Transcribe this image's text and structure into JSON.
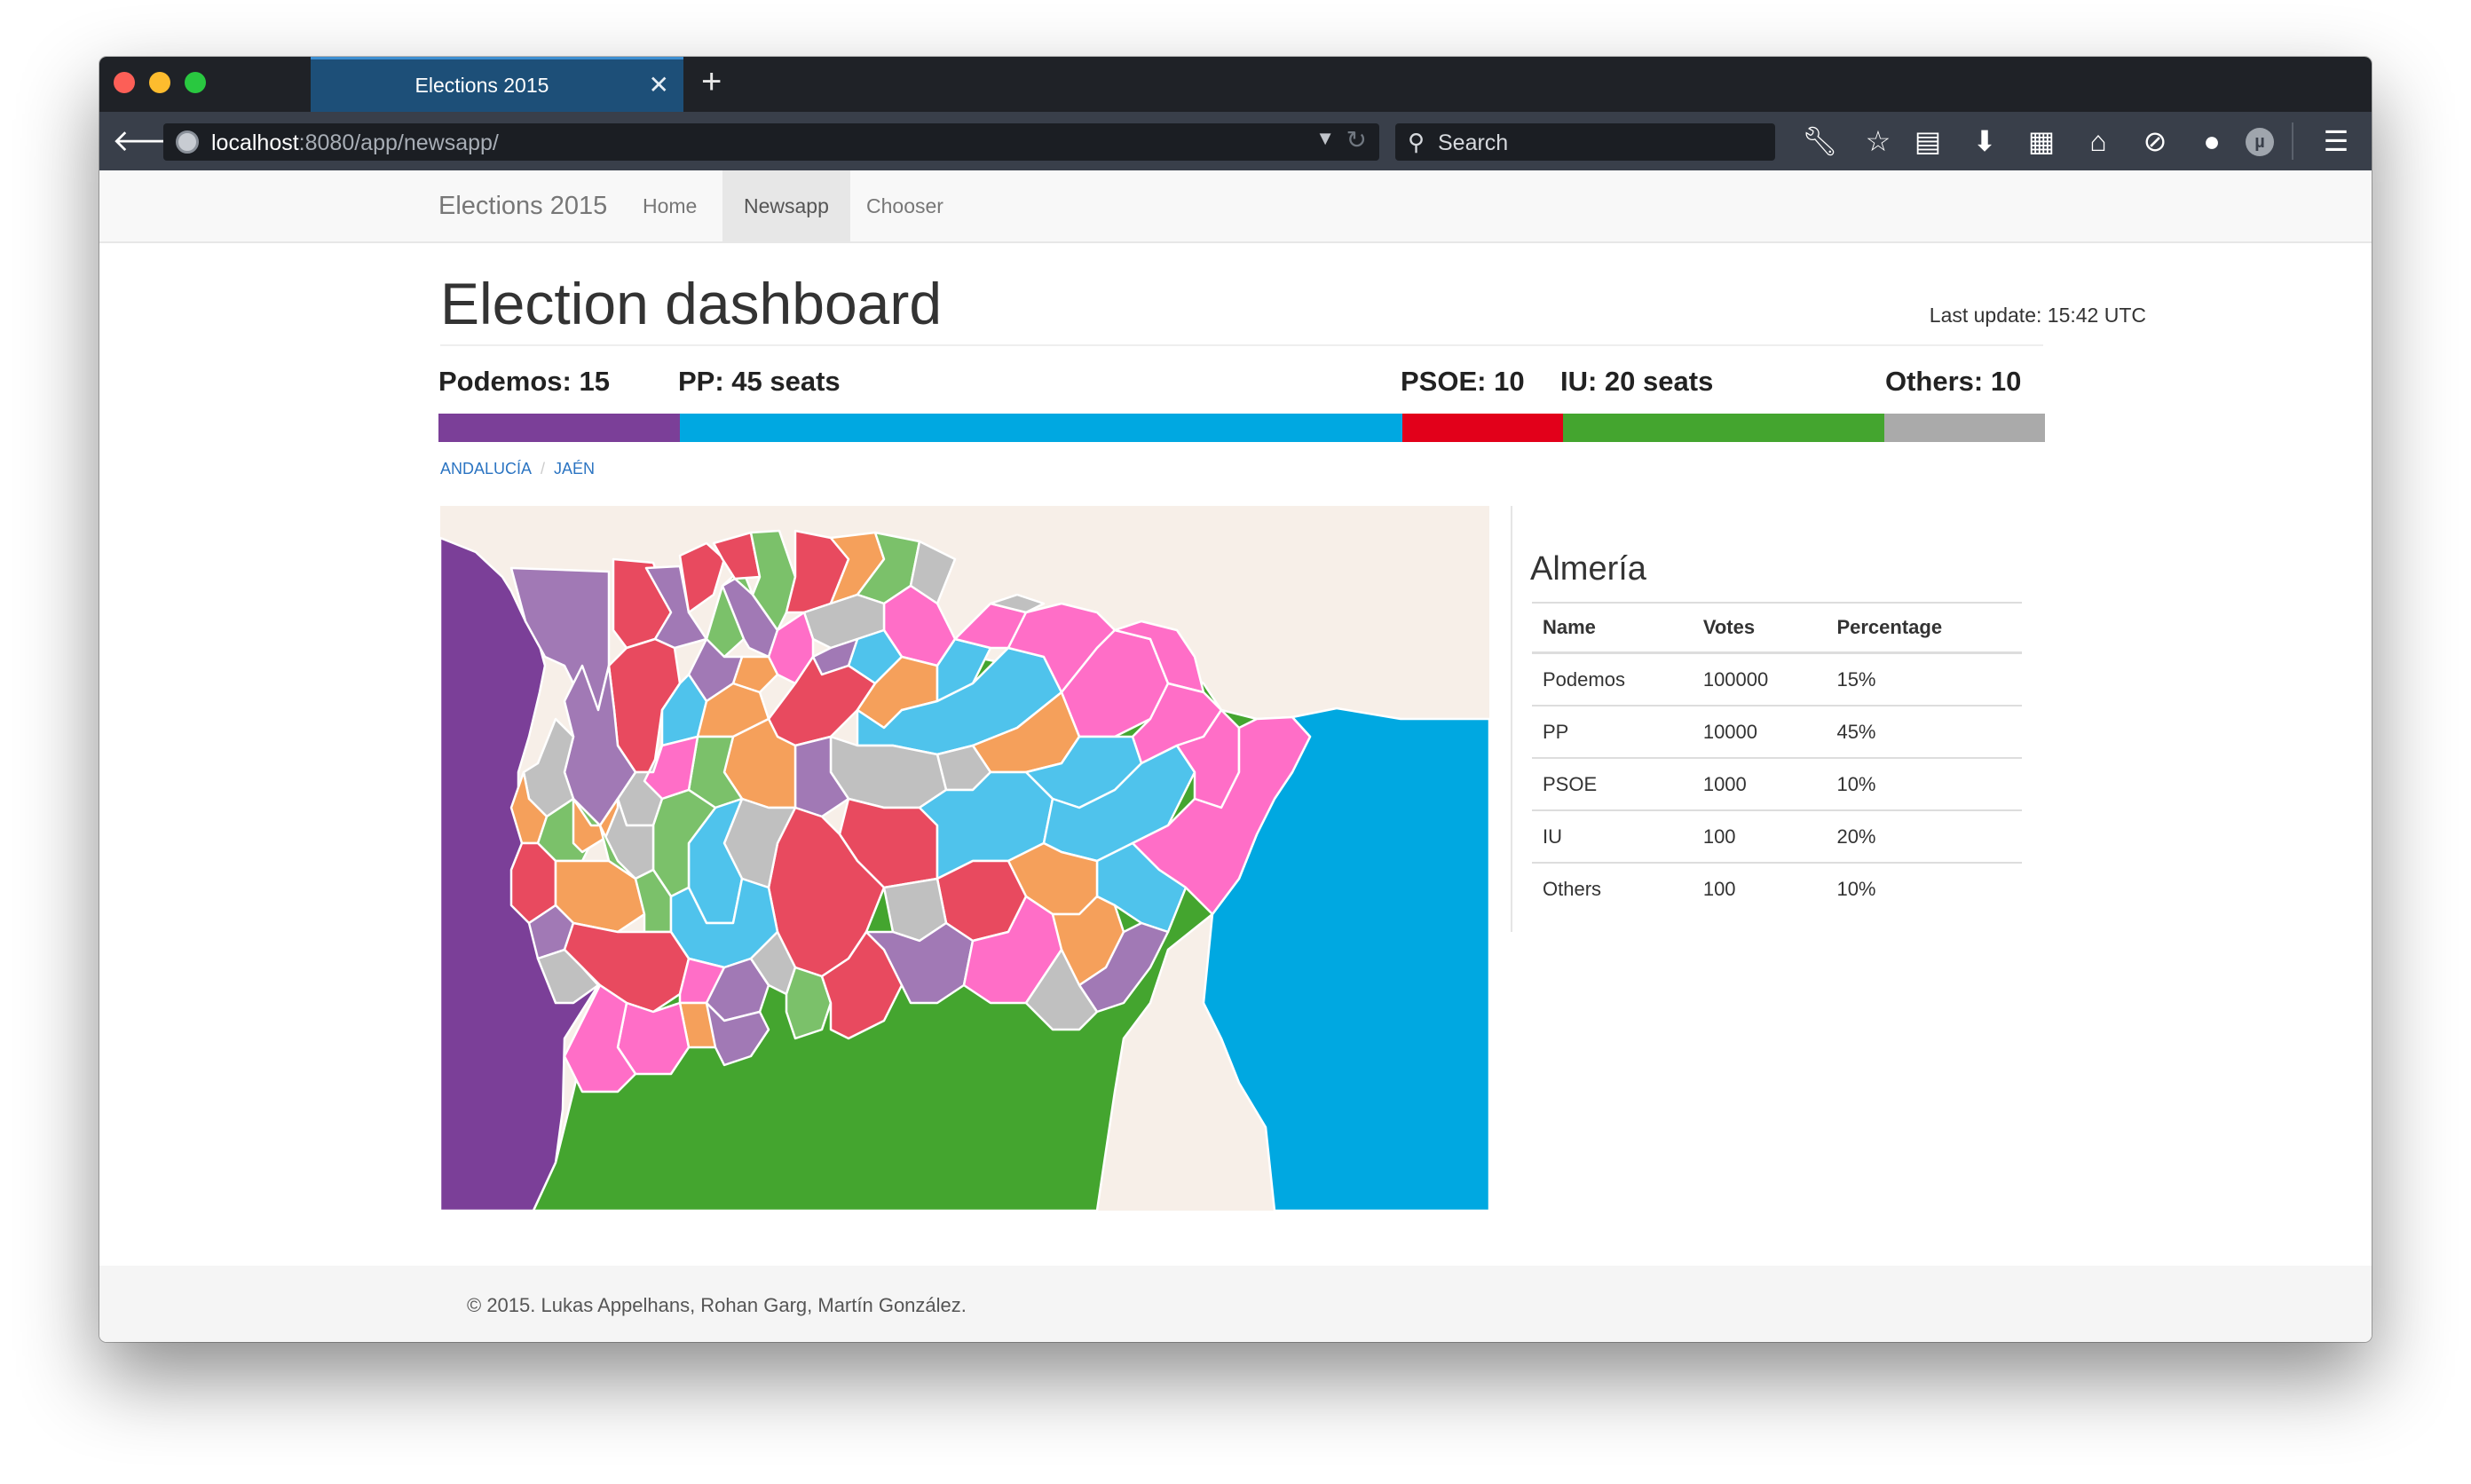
{
  "browser": {
    "tab_title": "Elections 2015",
    "tab_close": "✕",
    "new_tab": "+",
    "url_host": "localhost",
    "url_path": ":8080/app/newsapp/",
    "search_placeholder": "Search"
  },
  "navbar": {
    "brand": "Elections 2015",
    "links": [
      "Home",
      "Newsapp",
      "Chooser"
    ],
    "active": "Newsapp"
  },
  "header": {
    "title": "Election dashboard",
    "last_update": "Last update: 15:42 UTC"
  },
  "seats": {
    "labels": [
      {
        "text": "Podemos: 15",
        "color": "#7b3f98"
      },
      {
        "text": "PP: 45 seats",
        "color": "#00a8e1"
      },
      {
        "text": "PSOE: 10",
        "color": "#e2001a"
      },
      {
        "text": "IU: 20 seats",
        "color": "#44a52f"
      },
      {
        "text": "Others: 10",
        "color": "#aaaaaa"
      }
    ],
    "shares": [
      15,
      45,
      10,
      20,
      10
    ]
  },
  "breadcrumb": [
    "ANDALUCÍA",
    "JAÉN"
  ],
  "map": {
    "colors": {
      "podemos": "#7b3f98",
      "podemos_light": "#a179b5",
      "pp": "#00a8e1",
      "pp_light": "#4fc3ec",
      "psoe": "#e84a5f",
      "iu": "#44a52f",
      "iu_light": "#7bc16a",
      "others": "#c0c0c0",
      "pink": "#ff6ec7",
      "orange": "#f5a05b",
      "background": "#f7efe8"
    }
  },
  "region": {
    "name": "Almería",
    "columns": [
      "Name",
      "Votes",
      "Percentage"
    ],
    "rows": [
      [
        "Podemos",
        "100000",
        "15%"
      ],
      [
        "PP",
        "10000",
        "45%"
      ],
      [
        "PSOE",
        "1000",
        "10%"
      ],
      [
        "IU",
        "100",
        "20%"
      ],
      [
        "Others",
        "100",
        "10%"
      ]
    ]
  },
  "footer": {
    "text": "© 2015. Lukas Appelhans, Rohan Garg, Martín González."
  },
  "icons": [
    "back-arrow-icon",
    "globe-icon",
    "dropdown-icon",
    "reload-icon",
    "search-icon",
    "wrench-icon",
    "star-icon",
    "clipboard-icon",
    "download-icon",
    "dashboard-icon",
    "home-icon",
    "blocked-icon",
    "chat-icon",
    "extension-icon",
    "menu-icon"
  ]
}
